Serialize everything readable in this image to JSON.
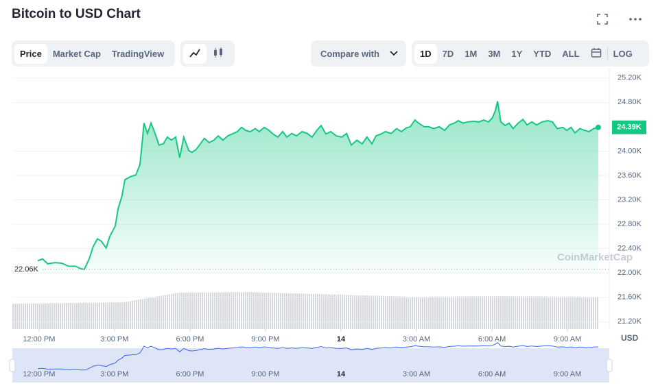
{
  "header": {
    "title": "Bitcoin to USD Chart"
  },
  "tabs": [
    "Price",
    "Market Cap",
    "TradingView"
  ],
  "compare": "Compare with",
  "ranges": [
    "1D",
    "7D",
    "1M",
    "3M",
    "1Y",
    "YTD",
    "ALL"
  ],
  "log": "LOG",
  "currency": "USD",
  "watermark": "CoinMarketCap",
  "chart_data": {
    "type": "line",
    "series": [
      {
        "name": "Price",
        "color": "#16c784",
        "x": [
          11.95,
          12.14,
          12.35,
          12.63,
          12.9,
          13.17,
          13.45,
          13.66,
          13.8,
          13.99,
          14.15,
          14.32,
          14.48,
          14.67,
          14.81,
          15.03,
          15.14,
          15.3,
          15.41,
          15.63,
          15.85,
          16.01,
          16.12,
          16.17,
          16.31,
          16.45,
          16.61,
          16.77,
          16.94,
          17.1,
          17.26,
          17.43,
          17.59,
          17.75,
          17.95,
          18.08,
          18.25,
          18.41,
          18.57,
          18.76,
          18.95,
          19.12,
          19.31,
          19.5,
          19.72,
          19.88,
          20.05,
          20.21,
          20.4,
          20.59,
          20.75,
          20.95,
          21.14,
          21.3,
          21.49,
          21.68,
          21.85,
          22.04,
          22.23,
          22.45,
          22.66,
          22.85,
          23.04,
          23.21,
          23.4,
          23.59,
          23.81,
          24.03,
          24.22,
          24.41,
          24.63,
          24.84,
          25.03,
          25.23,
          25.39,
          25.58,
          25.77,
          25.99,
          26.21,
          26.4,
          26.59,
          26.75,
          26.94,
          27.08,
          27.3,
          27.49,
          27.68,
          27.9,
          28.12,
          28.31,
          28.5,
          28.66,
          28.85,
          29.04,
          29.26,
          29.48,
          29.67,
          29.86,
          30.02,
          30.13,
          30.22,
          30.35,
          30.52,
          30.68,
          30.84,
          31.04,
          31.23,
          31.39,
          31.58,
          31.77,
          31.99,
          32.21,
          32.4,
          32.59,
          32.81,
          32.97,
          33.14,
          33.3,
          33.49,
          33.68,
          33.85,
          34.04,
          34.22
        ],
        "values": [
          22200,
          22230,
          22150,
          22170,
          22160,
          22110,
          22110,
          22070,
          22060,
          22230,
          22430,
          22560,
          22520,
          22410,
          22600,
          22770,
          23050,
          23270,
          23530,
          23580,
          23610,
          23780,
          24230,
          24460,
          24290,
          24460,
          24290,
          24100,
          24120,
          24230,
          24180,
          24230,
          23890,
          24230,
          24010,
          23980,
          24030,
          24120,
          24210,
          24140,
          24180,
          24250,
          24180,
          24250,
          24290,
          24320,
          24390,
          24340,
          24320,
          24370,
          24320,
          24390,
          24340,
          24280,
          24230,
          24320,
          24230,
          24290,
          24250,
          24320,
          24290,
          24230,
          24340,
          24420,
          24280,
          24320,
          24250,
          24230,
          24290,
          24100,
          24180,
          24120,
          24230,
          24120,
          24250,
          24280,
          24320,
          24290,
          24370,
          24320,
          24380,
          24400,
          24510,
          24460,
          24400,
          24400,
          24370,
          24400,
          24340,
          24430,
          24460,
          24500,
          24460,
          24480,
          24490,
          24480,
          24510,
          24480,
          24550,
          24660,
          24820,
          24480,
          24420,
          24460,
          24370,
          24460,
          24520,
          24430,
          24480,
          24430,
          24480,
          24500,
          24480,
          24370,
          24390,
          24340,
          24390,
          24300,
          24370,
          24340,
          24320,
          24370,
          24390
        ]
      }
    ],
    "xlim": [
      10.94,
      34.66
    ],
    "xticks": [
      {
        "value": 12,
        "label": "12:00 PM"
      },
      {
        "value": 15,
        "label": "3:00 PM"
      },
      {
        "value": 18,
        "label": "6:00 PM"
      },
      {
        "value": 21,
        "label": "9:00 PM"
      },
      {
        "value": 24,
        "label": "14"
      },
      {
        "value": 27,
        "label": "3:00 AM"
      },
      {
        "value": 30,
        "label": "6:00 AM"
      },
      {
        "value": 33,
        "label": "9:00 AM"
      }
    ],
    "ylim": [
      21080,
      25220
    ],
    "yticks": [
      {
        "value": 25200,
        "label": "25.20K"
      },
      {
        "value": 24800,
        "label": "24.80K"
      },
      {
        "value": 24000,
        "label": "24.00K"
      },
      {
        "value": 23600,
        "label": "23.60K"
      },
      {
        "value": 23200,
        "label": "23.20K"
      },
      {
        "value": 22800,
        "label": "22.80K"
      },
      {
        "value": 22400,
        "label": "22.40K"
      },
      {
        "value": 22000,
        "label": "22.00K"
      },
      {
        "value": 21600,
        "label": "21.60K"
      },
      {
        "value": 21200,
        "label": "21.20K"
      }
    ],
    "grid": true,
    "annotations": [
      {
        "text": "22.06K",
        "value": 22060
      },
      {
        "text": "24.39K",
        "value": 24390
      }
    ]
  }
}
